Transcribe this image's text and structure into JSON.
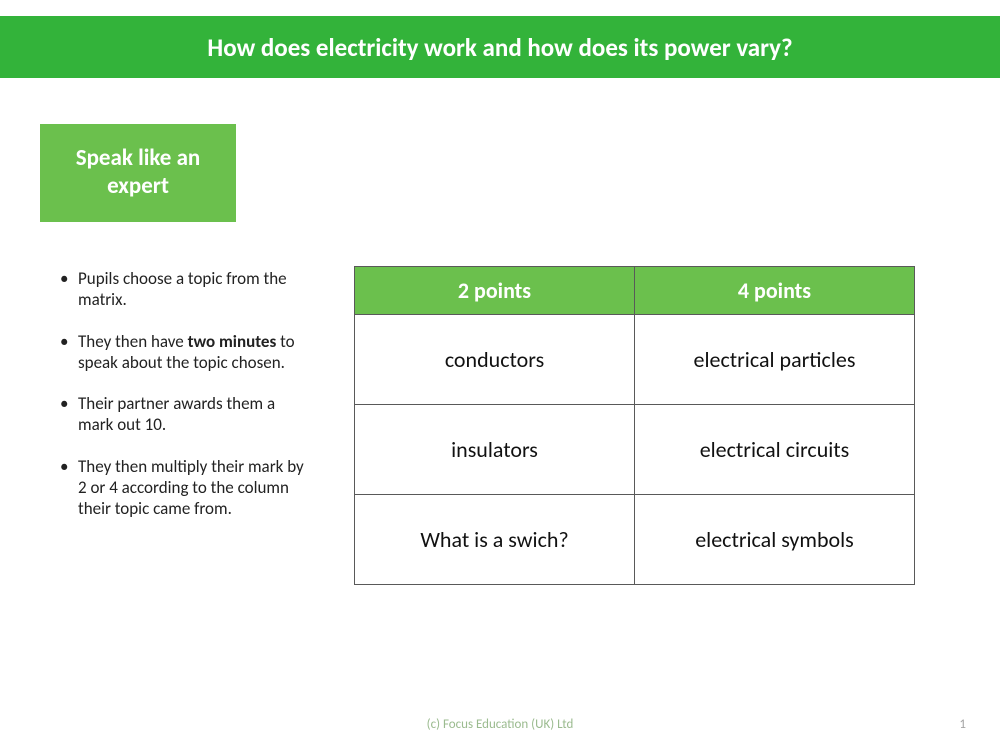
{
  "colors": {
    "title_banner_bg": "#33b33a",
    "subtitle_box_bg": "#6bc04d",
    "table_header_bg": "#6bc04d",
    "footer_text": "#9bbb8f",
    "page_number": "#a6a6a6"
  },
  "title": "How does electricity work and how does its power vary?",
  "subtitle": "Speak like an expert",
  "bullets": [
    {
      "pre": "Pupils choose a topic from the matrix.",
      "bold": "",
      "post": ""
    },
    {
      "pre": "They then have ",
      "bold": "two minutes",
      "post": " to speak about the topic chosen."
    },
    {
      "pre": "Their partner awards them a mark out 10.",
      "bold": "",
      "post": ""
    },
    {
      "pre": "They then multiply their mark by 2 or 4 according to the column their topic came from.",
      "bold": "",
      "post": ""
    }
  ],
  "matrix": {
    "headers": [
      "2 points",
      "4 points"
    ],
    "rows": [
      [
        "conductors",
        "electrical particles"
      ],
      [
        "insulators",
        "electrical circuits"
      ],
      [
        "What is a swich?",
        "electrical symbols"
      ]
    ]
  },
  "footer": {
    "copyright": "(c) Focus Education (UK) Ltd",
    "page": "1"
  }
}
